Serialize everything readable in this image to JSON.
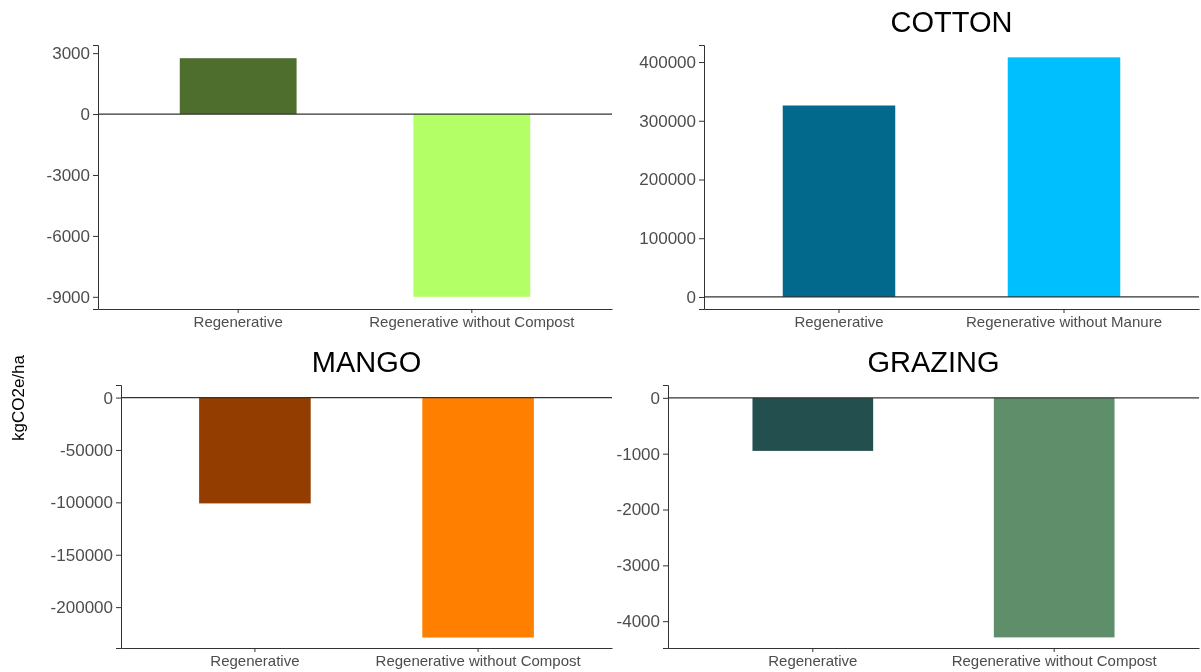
{
  "chart_data": [
    {
      "type": "bar",
      "ylabel": "kgCO2e/ha",
      "categories": [
        "Regenerative",
        "Regenerative without Compost"
      ],
      "colors": [
        "#4e6e2e",
        "#b3ff66"
      ],
      "values": [
        2750,
        -9000
      ],
      "ylim": [
        -9600,
        3400
      ],
      "yticks": [
        -9000,
        -6000,
        -3000,
        0,
        3000
      ],
      "ref_lines": [
        {
          "axis": "y",
          "value": 0
        }
      ]
    },
    {
      "type": "bar",
      "title": "COTTON",
      "categories": [
        "Regenerative",
        "Regenerative without Manure"
      ],
      "colors": [
        "#03698c",
        "#00bfff"
      ],
      "values": [
        326000,
        408000
      ],
      "ylim": [
        -20500,
        429000
      ],
      "yticks": [
        0,
        100000,
        200000,
        300000,
        400000
      ],
      "ref_lines": [
        {
          "axis": "y",
          "value": 0
        }
      ]
    },
    {
      "type": "bar",
      "title": "MANGO",
      "categories": [
        "Regenerative",
        "Regenerative without Compost"
      ],
      "colors": [
        "#933d00",
        "#ff8000"
      ],
      "values": [
        -101000,
        -229000
      ],
      "ylim": [
        -239000,
        12000
      ],
      "yticks": [
        -200000,
        -150000,
        -100000,
        -50000,
        0
      ],
      "ref_lines": [
        {
          "axis": "y",
          "value": 0
        }
      ]
    },
    {
      "type": "bar",
      "title": "GRAZING",
      "categories": [
        "Regenerative",
        "Regenerative without Compost"
      ],
      "colors": [
        "#244f4f",
        "#5e8f6a"
      ],
      "values": [
        -950,
        -4290
      ],
      "ylim": [
        -4480,
        230
      ],
      "yticks": [
        -4000,
        -3000,
        -2000,
        -1000,
        0
      ],
      "ref_lines": [
        {
          "axis": "y",
          "value": 0
        }
      ]
    }
  ]
}
